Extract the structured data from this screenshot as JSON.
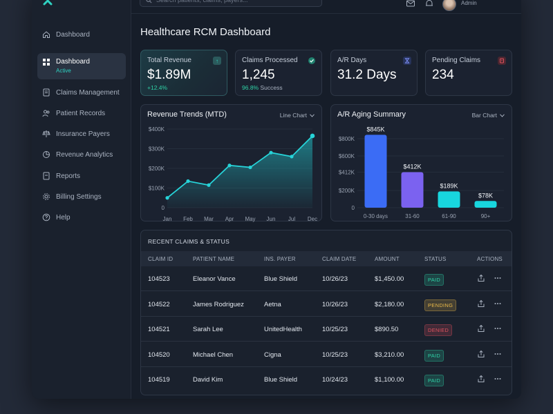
{
  "search": {
    "placeholder": "Search patients, claims, payers..."
  },
  "user": {
    "role": "Admin"
  },
  "colors": {
    "accent": "#2fd2c2",
    "bar_blue": "#3b6cf5",
    "bar_purple": "#7b62f0",
    "bar_cyan": "#18d6de"
  },
  "sidebar": {
    "items": [
      {
        "label": "Dashboard",
        "icon": "home-icon"
      },
      {
        "label": "Dashboard",
        "sub": "Active",
        "icon": "grid-icon"
      },
      {
        "label": "Claims Management",
        "icon": "document-icon"
      },
      {
        "label": "Patient Records",
        "icon": "users-icon"
      },
      {
        "label": "Insurance Payers",
        "icon": "scale-icon"
      },
      {
        "label": "Revenue Analytics",
        "icon": "pie-chart-icon"
      },
      {
        "label": "Reports",
        "icon": "report-icon"
      },
      {
        "label": "Billing Settings",
        "icon": "gear-icon"
      },
      {
        "label": "Help",
        "icon": "help-icon"
      }
    ]
  },
  "main": {
    "title": "Healthcare RCM Dashboard",
    "kpis": [
      {
        "label": "Total Revenue",
        "value": "$1.89M",
        "sub": "+12.4%",
        "sub_muted": "",
        "icon": "arrow-up-icon"
      },
      {
        "label": "Claims Processed",
        "value": "1,245",
        "sub": "96.8%",
        "sub_muted": "Success",
        "icon": "check-icon"
      },
      {
        "label": "A/R Days",
        "value": "31.2 Days",
        "sub": "",
        "sub_muted": "",
        "icon": "hourglass-icon"
      },
      {
        "label": "Pending Claims",
        "value": "234",
        "sub": "",
        "sub_muted": "",
        "icon": "alert-icon"
      }
    ]
  },
  "chart_data": [
    {
      "type": "area",
      "title": "Revenue Trends (MTD)",
      "selector": "Line Chart",
      "x": [
        "Jan",
        "Feb",
        "Mar",
        "Apr",
        "May",
        "Jun",
        "Jul",
        "Dec"
      ],
      "series": [
        {
          "values": [
            50000,
            135000,
            115000,
            215000,
            205000,
            280000,
            260000,
            365000
          ]
        }
      ],
      "ylim": [
        0,
        400000
      ],
      "yticks": [
        "0",
        "$100K",
        "$200K",
        "$300K",
        "$400K"
      ],
      "ytick_values": [
        0,
        100000,
        200000,
        300000,
        400000
      ],
      "grid": true
    },
    {
      "type": "bar",
      "title": "A/R Aging Summary",
      "selector": "Bar Chart",
      "categories": [
        "0-30 days",
        "31-60",
        "61-90",
        "90+"
      ],
      "values": [
        845000,
        412000,
        189000,
        78000
      ],
      "value_labels": [
        "$845K",
        "$412K",
        "$189K",
        "$78K"
      ],
      "ylim": [
        0,
        1000000
      ],
      "yticks": [
        "0",
        "$200K",
        "$412K",
        "$600K",
        "$800K"
      ],
      "ytick_values": [
        0,
        200000,
        412000,
        600000,
        800000
      ],
      "grid": true
    }
  ],
  "table": {
    "title": "RECENT CLAIMS & STATUS",
    "columns": [
      "CLAIM ID",
      "PATIENT NAME",
      "INS. PAYER",
      "CLAIM DATE",
      "AMOUNT",
      "STATUS",
      "ACTIONS"
    ],
    "rows": [
      {
        "id": "104523",
        "patient": "Eleanor Vance",
        "payer": "Blue Shield",
        "date": "10/26/23",
        "amount": "$1,450.00",
        "status": "PAID",
        "status_color": "#2fd2a6"
      },
      {
        "id": "104522",
        "patient": "James Rodriguez",
        "payer": "Aetna",
        "date": "10/26/23",
        "amount": "$2,180.00",
        "status": "PENDING",
        "status_color": "#e9b949"
      },
      {
        "id": "104521",
        "patient": "Sarah Lee",
        "payer": "UnitedHealth",
        "date": "10/25/23",
        "amount": "$890.50",
        "status": "DENIED",
        "status_color": "#e0525e"
      },
      {
        "id": "104520",
        "patient": "Michael Chen",
        "payer": "Cigna",
        "date": "10/25/23",
        "amount": "$3,210.00",
        "status": "PAID",
        "status_color": "#2fd2a6"
      },
      {
        "id": "104519",
        "patient": "David Kim",
        "payer": "Blue Shield",
        "date": "10/24/23",
        "amount": "$1,100.00",
        "status": "PAID",
        "status_color": "#2fd2a6"
      }
    ]
  }
}
